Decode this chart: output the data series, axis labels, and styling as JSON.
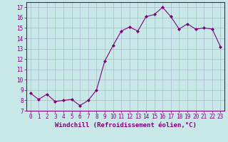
{
  "x": [
    0,
    1,
    2,
    3,
    4,
    5,
    6,
    7,
    8,
    9,
    10,
    11,
    12,
    13,
    14,
    15,
    16,
    17,
    18,
    19,
    20,
    21,
    22,
    23
  ],
  "y": [
    8.7,
    8.1,
    8.6,
    7.9,
    8.0,
    8.1,
    7.5,
    8.0,
    9.0,
    11.8,
    13.3,
    14.7,
    15.1,
    14.7,
    16.1,
    16.3,
    17.0,
    16.1,
    14.9,
    15.4,
    14.9,
    15.0,
    14.9,
    13.2
  ],
  "line_color": "#800080",
  "marker": "D",
  "marker_size": 2.0,
  "bg_color": "#c8e8e8",
  "grid_color": "#aabbcc",
  "xlabel": "Windchill (Refroidissement éolien,°C)",
  "xlim": [
    -0.5,
    23.5
  ],
  "ylim": [
    7,
    17.5
  ],
  "yticks": [
    7,
    8,
    9,
    10,
    11,
    12,
    13,
    14,
    15,
    16,
    17
  ],
  "xticks": [
    0,
    1,
    2,
    3,
    4,
    5,
    6,
    7,
    8,
    9,
    10,
    11,
    12,
    13,
    14,
    15,
    16,
    17,
    18,
    19,
    20,
    21,
    22,
    23
  ],
  "tick_label_color": "#800080",
  "axis_color": "#800080",
  "xlabel_fontsize": 6.5,
  "tick_fontsize": 5.5,
  "linewidth": 0.8
}
